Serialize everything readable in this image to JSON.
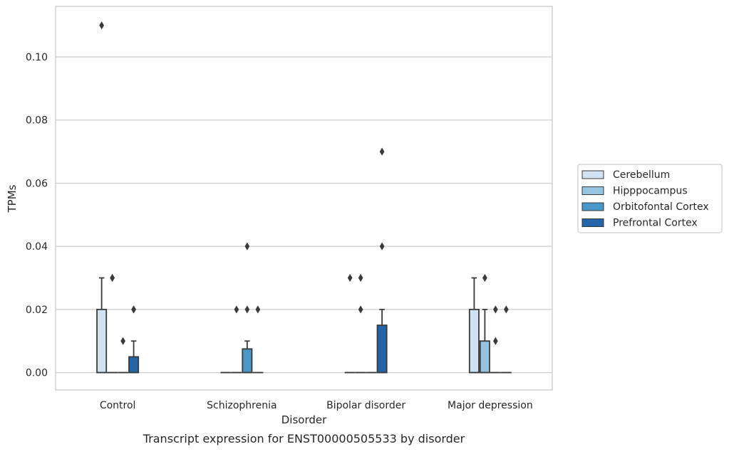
{
  "chart_data": {
    "type": "boxplot",
    "title": "",
    "caption": "Transcript expression for ENST00000505533 by disorder",
    "xlabel": "Disorder",
    "ylabel": "TPMs",
    "categories": [
      "Control",
      "Schizophrenia",
      "Bipolar disorder",
      "Major depression"
    ],
    "ylim": [
      -0.0055,
      0.116
    ],
    "yticks": [
      0.0,
      0.02,
      0.04,
      0.06,
      0.08,
      0.1
    ],
    "ytick_labels": [
      "0.00",
      "0.02",
      "0.04",
      "0.06",
      "0.08",
      "0.10"
    ],
    "grid": "horizontal",
    "legend_position": "right",
    "series": [
      {
        "name": "Cerebellum",
        "color": "#d0e1f2",
        "boxes": [
          {
            "q1": 0.0,
            "median": 0.0,
            "q3": 0.02,
            "whisker_low": 0.0,
            "whisker_high": 0.03,
            "outliers": [
              0.11
            ]
          },
          {
            "q1": 0.0,
            "median": 0.0,
            "q3": 0.0,
            "whisker_low": 0.0,
            "whisker_high": 0.0,
            "outliers": []
          },
          {
            "q1": 0.0,
            "median": 0.0,
            "q3": 0.0,
            "whisker_low": 0.0,
            "whisker_high": 0.0,
            "outliers": [
              0.03
            ]
          },
          {
            "q1": 0.0,
            "median": 0.0,
            "q3": 0.02,
            "whisker_low": 0.0,
            "whisker_high": 0.03,
            "outliers": []
          }
        ]
      },
      {
        "name": "Hipppocampus",
        "color": "#94c4df",
        "boxes": [
          {
            "q1": 0.0,
            "median": 0.0,
            "q3": 0.0,
            "whisker_low": 0.0,
            "whisker_high": 0.0,
            "outliers": [
              0.03,
              0.03
            ]
          },
          {
            "q1": 0.0,
            "median": 0.0,
            "q3": 0.0,
            "whisker_low": 0.0,
            "whisker_high": 0.0,
            "outliers": [
              0.02
            ]
          },
          {
            "q1": 0.0,
            "median": 0.0,
            "q3": 0.0,
            "whisker_low": 0.0,
            "whisker_high": 0.0,
            "outliers": [
              0.03,
              0.02
            ]
          },
          {
            "q1": 0.0,
            "median": 0.0,
            "q3": 0.01,
            "whisker_low": 0.0,
            "whisker_high": 0.02,
            "outliers": [
              0.03
            ]
          }
        ]
      },
      {
        "name": "Orbitofontal Cortex",
        "color": "#4a98c9",
        "boxes": [
          {
            "q1": 0.0,
            "median": 0.0,
            "q3": 0.0,
            "whisker_low": 0.0,
            "whisker_high": 0.0,
            "outliers": [
              0.01
            ]
          },
          {
            "q1": 0.0,
            "median": 0.0,
            "q3": 0.0075,
            "whisker_low": 0.0,
            "whisker_high": 0.01,
            "outliers": [
              0.04,
              0.02
            ]
          },
          {
            "q1": 0.0,
            "median": 0.0,
            "q3": 0.0,
            "whisker_low": 0.0,
            "whisker_high": 0.0,
            "outliers": []
          },
          {
            "q1": 0.0,
            "median": 0.0,
            "q3": 0.0,
            "whisker_low": 0.0,
            "whisker_high": 0.0,
            "outliers": [
              0.01,
              0.02
            ]
          }
        ]
      },
      {
        "name": "Prefrontal Cortex",
        "color": "#2464a9",
        "boxes": [
          {
            "q1": 0.0,
            "median": 0.0,
            "q3": 0.005,
            "whisker_low": 0.0,
            "whisker_high": 0.01,
            "outliers": [
              0.02,
              0.02
            ]
          },
          {
            "q1": 0.0,
            "median": 0.0,
            "q3": 0.0,
            "whisker_low": 0.0,
            "whisker_high": 0.0,
            "outliers": [
              0.02
            ]
          },
          {
            "q1": 0.0,
            "median": 0.0,
            "q3": 0.015,
            "whisker_low": 0.0,
            "whisker_high": 0.02,
            "outliers": [
              0.07,
              0.04
            ]
          },
          {
            "q1": 0.0,
            "median": 0.0,
            "q3": 0.0,
            "whisker_low": 0.0,
            "whisker_high": 0.0,
            "outliers": [
              0.02
            ]
          }
        ]
      }
    ]
  }
}
